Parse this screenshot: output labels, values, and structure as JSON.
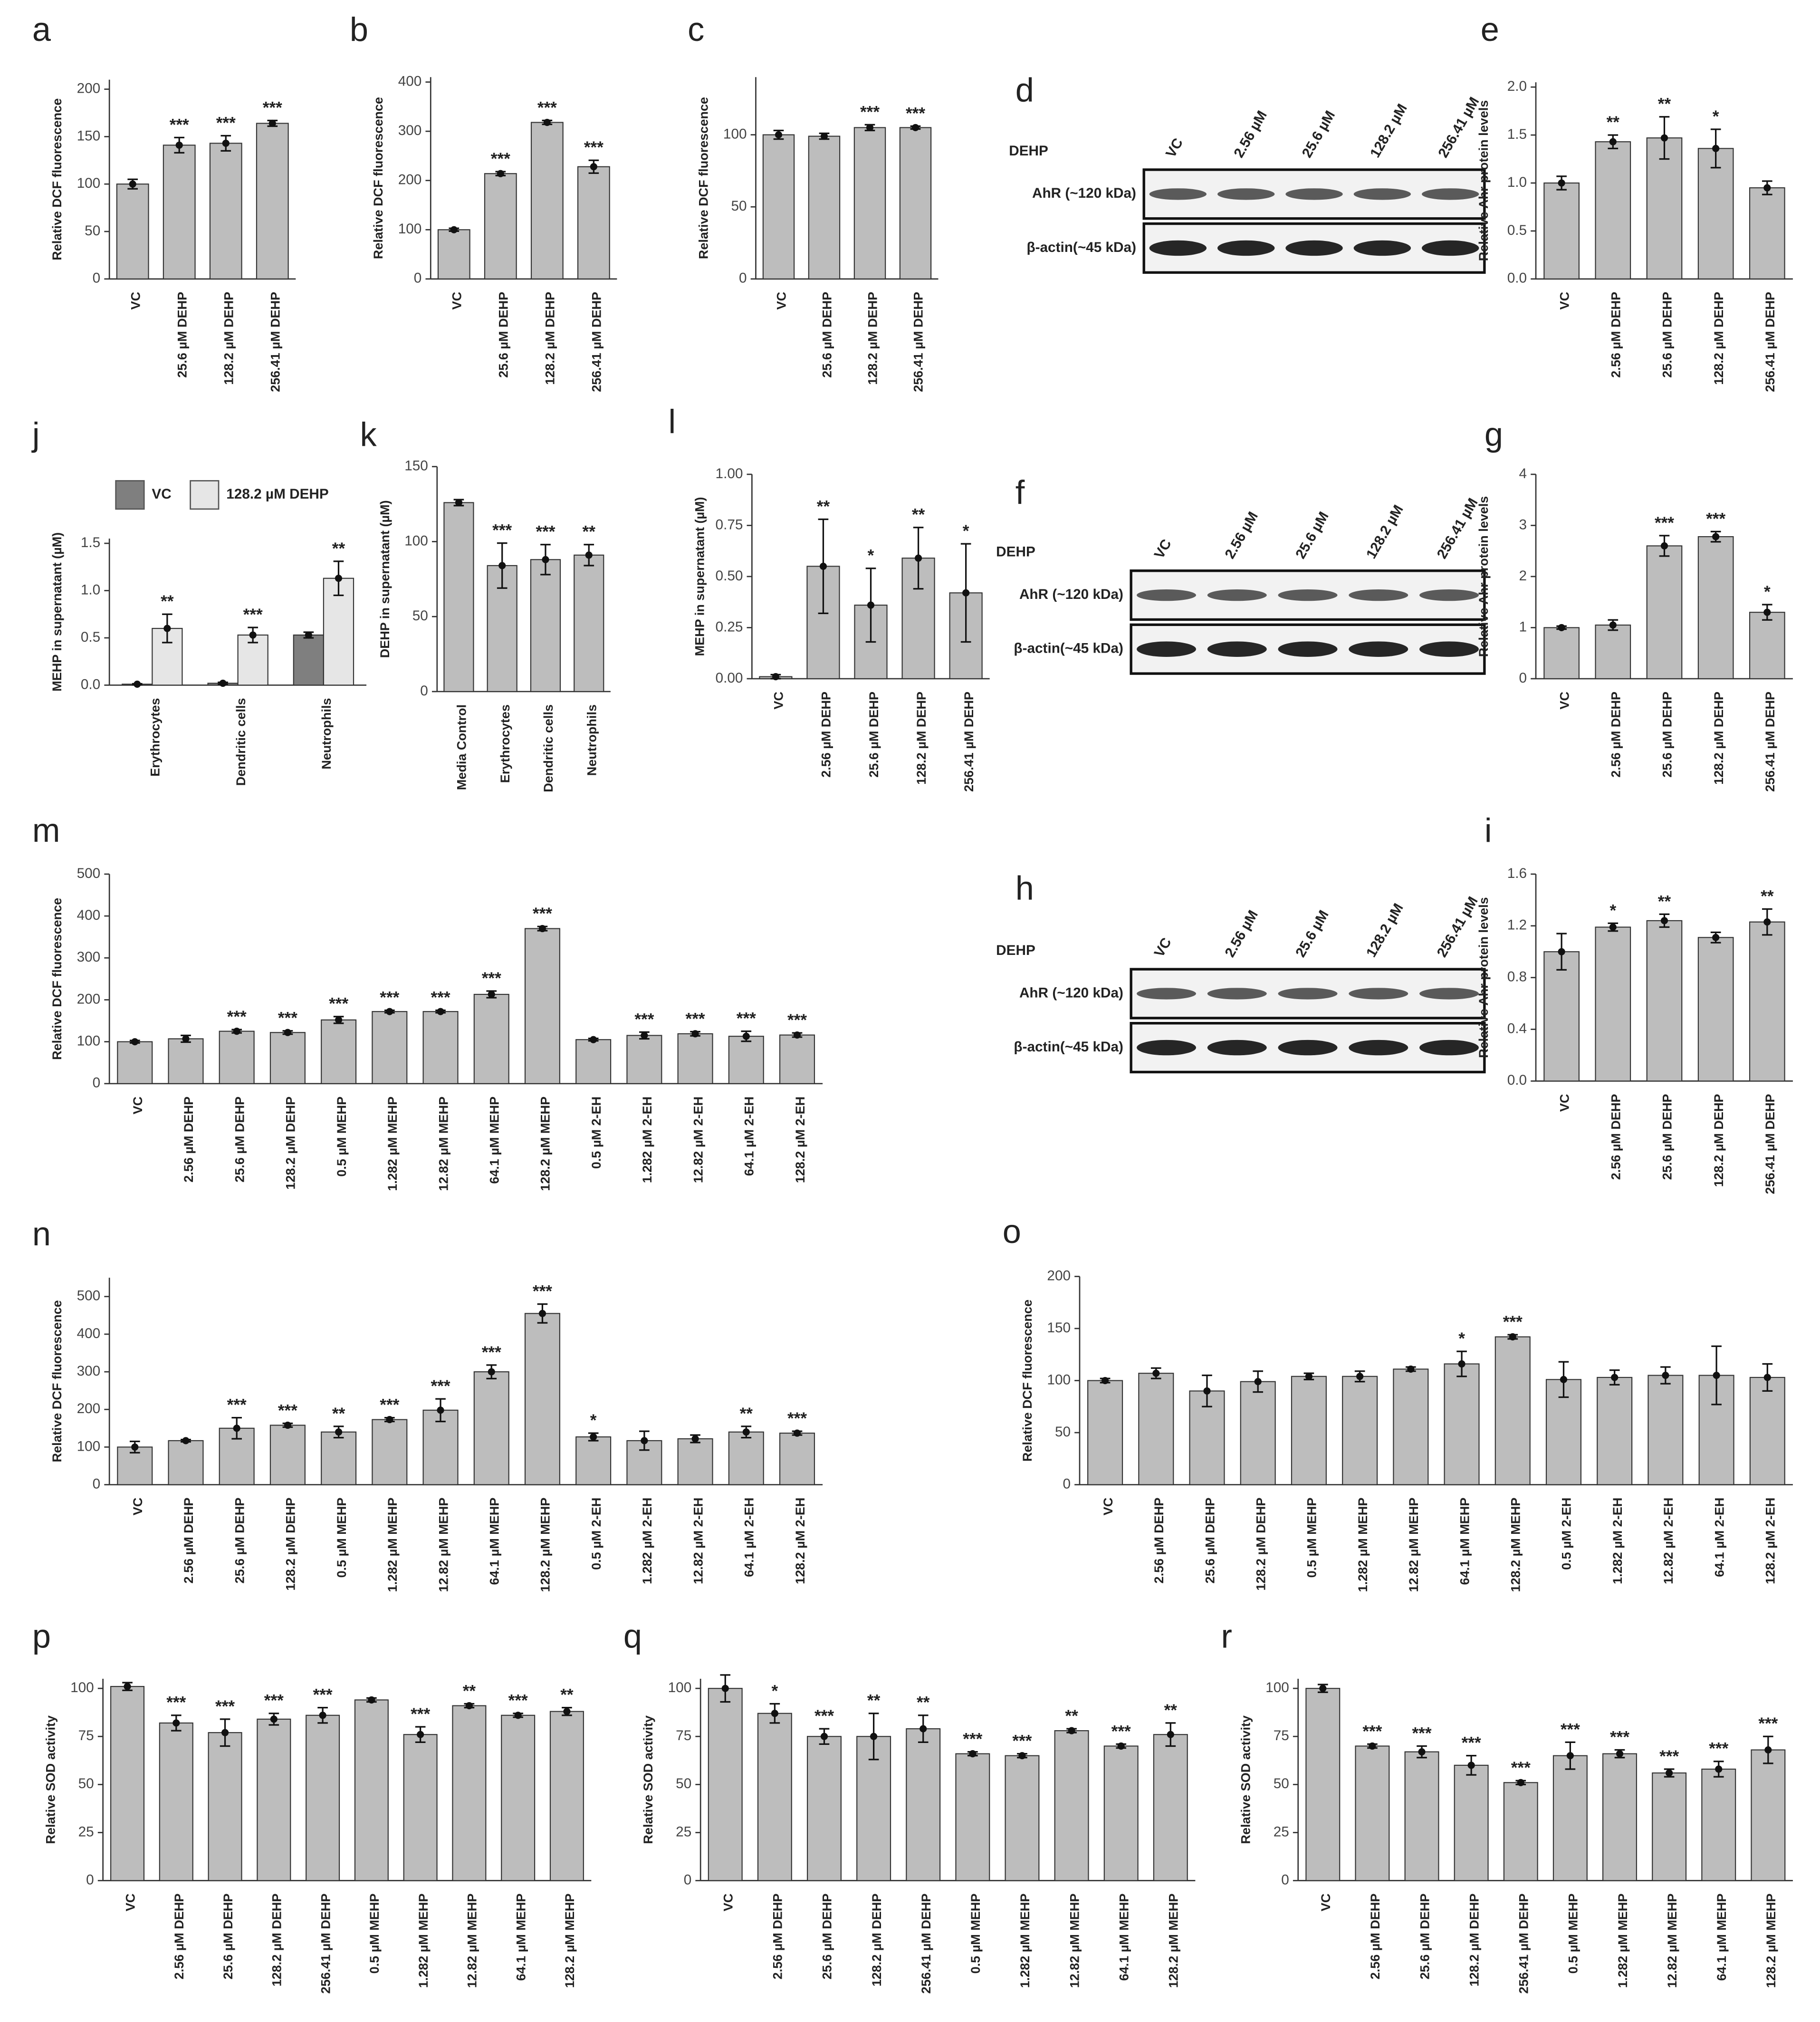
{
  "chart_data": [
    {
      "type": "bar",
      "panel": "a",
      "y_label": "Relative DCF fluorescence",
      "categories": [
        "VC",
        "25.6 µM DEHP",
        "128.2 µM DEHP",
        "256.41 µM DEHP"
      ],
      "values": [
        100,
        141,
        143,
        164
      ],
      "errors": [
        5,
        8,
        8,
        3
      ],
      "annotations": [
        null,
        "***",
        "***",
        "***"
      ],
      "color": "#bdbdbd",
      "ylim": [
        0,
        210
      ],
      "yticks": [
        0,
        50,
        100,
        150,
        200
      ]
    },
    {
      "type": "bar",
      "panel": "b",
      "y_label": "Relative DCF fluorescence",
      "categories": [
        "VC",
        "25.6 µM DEHP",
        "128.2 µM DEHP",
        "256.41 µM DEHP"
      ],
      "values": [
        100,
        214,
        318,
        228
      ],
      "errors": [
        3,
        4,
        4,
        13
      ],
      "annotations": [
        null,
        "***",
        "***",
        "***"
      ],
      "color": "#bdbdbd",
      "ylim": [
        0,
        410
      ],
      "yticks": [
        0,
        100,
        200,
        300,
        400
      ]
    },
    {
      "type": "bar",
      "panel": "c",
      "y_label": "Relative DCF fluorescence",
      "categories": [
        "VC",
        "25.6 µM DEHP",
        "128.2 µM DEHP",
        "256.41 µM DEHP"
      ],
      "values": [
        100,
        99,
        105,
        105
      ],
      "errors": [
        3,
        2,
        2,
        1
      ],
      "annotations": [
        null,
        null,
        "***",
        "***"
      ],
      "color": "#bdbdbd",
      "ylim": [
        0,
        140
      ],
      "yticks": [
        0,
        50,
        100
      ]
    },
    {
      "type": "blot",
      "panel": "d",
      "title": "DEHP",
      "lanes": [
        "VC",
        "2.56 µM",
        "25.6 µM",
        "128.2 µM",
        "256.41 µM"
      ],
      "rows": [
        "AhR (~120 kDa)",
        "β-actin(~45 kDa)"
      ]
    },
    {
      "type": "bar",
      "panel": "e",
      "y_label": "Relative Ahr protein levels",
      "categories": [
        "VC",
        "2.56 µM DEHP",
        "25.6 µM DEHP",
        "128.2 µM DEHP",
        "256.41 µM DEHP"
      ],
      "values": [
        1.0,
        1.43,
        1.47,
        1.36,
        0.95
      ],
      "errors": [
        0.07,
        0.07,
        0.22,
        0.2,
        0.07
      ],
      "annotations": [
        null,
        "**",
        "**",
        "*",
        null
      ],
      "color": "#bdbdbd",
      "ylim": [
        0,
        2.05
      ],
      "yticks": [
        {
          "value": 0,
          "label": "0.0"
        },
        0.5,
        {
          "value": 1,
          "label": "1.0"
        },
        1.5,
        {
          "value": 2,
          "label": "2.0"
        }
      ]
    },
    {
      "type": "grouped_bar",
      "panel": "j",
      "y_label": "MEHP in supernatant (µM)",
      "categories": [
        "Erythrocytes",
        "Dendritic cells",
        "Neutrophils"
      ],
      "series": [
        {
          "name": "VC",
          "color": "#7f7f7f",
          "values": [
            0.01,
            0.02,
            0.53
          ],
          "errors": [
            0.005,
            0.01,
            0.03
          ]
        },
        {
          "name": "128.2 µM DEHP",
          "color": "#e6e6e6",
          "values": [
            0.6,
            0.53,
            1.13
          ],
          "errors": [
            0.15,
            0.08,
            0.18
          ]
        }
      ],
      "annotations": [
        "**",
        "***",
        "**"
      ],
      "legend": "top",
      "ylim": [
        0,
        1.55
      ],
      "yticks": [
        {
          "value": 0,
          "label": "0.0"
        },
        0.5,
        {
          "value": 1,
          "label": "1.0"
        },
        1.5
      ]
    },
    {
      "type": "bar",
      "panel": "k",
      "y_label": "DEHP in supernatant (µM)",
      "categories": [
        "Media Control",
        "Erythrocytes",
        "Dendritic cells",
        "Neutrophils"
      ],
      "values": [
        126,
        84,
        88,
        91
      ],
      "errors": [
        2,
        15,
        10,
        7
      ],
      "annotations": [
        null,
        "***",
        "***",
        "**"
      ],
      "color": "#bdbdbd",
      "ylim": [
        0,
        150
      ],
      "yticks": [
        0,
        50,
        100,
        150
      ]
    },
    {
      "type": "bar",
      "panel": "l",
      "y_label": "MEHP in supernatant (µM)",
      "categories": [
        "VC",
        "2.56 µM DEHP",
        "25.6 µM DEHP",
        "128.2 µM DEHP",
        "256.41 µM DEHP"
      ],
      "values": [
        0.01,
        0.55,
        0.36,
        0.59,
        0.42
      ],
      "errors": [
        0.01,
        0.23,
        0.18,
        0.15,
        0.24
      ],
      "annotations": [
        null,
        "**",
        "*",
        "**",
        "*"
      ],
      "color": "#bdbdbd",
      "ylim": [
        0,
        1.0
      ],
      "yticks": [
        {
          "value": 0,
          "label": "0.00"
        },
        0.25,
        {
          "value": 0.5,
          "label": "0.50"
        },
        0.75,
        {
          "value": 1,
          "label": "1.00"
        }
      ]
    },
    {
      "type": "blot",
      "panel": "f",
      "title": "DEHP",
      "lanes": [
        "VC",
        "2.56 µM",
        "25.6 µM",
        "128.2 µM",
        "256.41 µM"
      ],
      "rows": [
        "AhR (~120 kDa)",
        "β-actin(~45 kDa)"
      ]
    },
    {
      "type": "bar",
      "panel": "g",
      "y_label": "Relative Ahr protein levels",
      "categories": [
        "VC",
        "2.56 µM DEHP",
        "25.6 µM DEHP",
        "128.2 µM DEHP",
        "256.41 µM DEHP"
      ],
      "values": [
        1.0,
        1.05,
        2.6,
        2.78,
        1.3
      ],
      "errors": [
        0.03,
        0.1,
        0.2,
        0.1,
        0.15
      ],
      "annotations": [
        null,
        null,
        "***",
        "***",
        "*"
      ],
      "color": "#bdbdbd",
      "ylim": [
        0,
        4
      ],
      "yticks": [
        0,
        1,
        2,
        3,
        4
      ]
    },
    {
      "type": "bar",
      "panel": "m",
      "y_label": "Relative DCF fluorescence",
      "categories": [
        "VC",
        "2.56 µM DEHP",
        "25.6 µM DEHP",
        "128.2 µM DEHP",
        "0.5 µM MEHP",
        "1.282 µM MEHP",
        "12.82 µM MEHP",
        "64.1 µM MEHP",
        "128.2 µM MEHP",
        "0.5 µM 2-EH",
        "1.282 µM 2-EH",
        "12.82 µM 2-EH",
        "64.1 µM 2-EH",
        "128.2 µM 2-EH"
      ],
      "values": [
        100,
        107,
        125,
        122,
        152,
        172,
        172,
        213,
        370,
        105,
        115,
        119,
        113,
        116
      ],
      "errors": [
        3,
        8,
        4,
        4,
        8,
        3,
        3,
        8,
        5,
        3,
        8,
        5,
        12,
        5
      ],
      "annotations": [
        null,
        null,
        "***",
        "***",
        "***",
        "***",
        "***",
        "***",
        "***",
        null,
        "***",
        "***",
        "***",
        "***"
      ],
      "color": "#bdbdbd",
      "ylim": [
        0,
        500
      ],
      "yticks": [
        0,
        100,
        200,
        300,
        400,
        500
      ]
    },
    {
      "type": "blot",
      "panel": "h",
      "title": "DEHP",
      "lanes": [
        "VC",
        "2.56 µM",
        "25.6 µM",
        "128.2 µM",
        "256.41 µM"
      ],
      "rows": [
        "AhR (~120 kDa)",
        "β-actin(~45 kDa)"
      ]
    },
    {
      "type": "bar",
      "panel": "i",
      "y_label": "Relative Ahr protein levels",
      "categories": [
        "VC",
        "2.56 µM DEHP",
        "25.6 µM DEHP",
        "128.2 µM DEHP",
        "256.41 µM DEHP"
      ],
      "values": [
        1.0,
        1.19,
        1.24,
        1.11,
        1.23
      ],
      "errors": [
        0.14,
        0.03,
        0.05,
        0.04,
        0.1
      ],
      "annotations": [
        null,
        "*",
        "**",
        null,
        "**"
      ],
      "color": "#bdbdbd",
      "ylim": [
        0,
        1.6
      ],
      "yticks": [
        {
          "value": 0,
          "label": "0.0"
        },
        0.4,
        0.8,
        1.2,
        1.6
      ]
    },
    {
      "type": "bar",
      "panel": "n",
      "y_label": "Relative DCF fluorescence",
      "categories": [
        "VC",
        "2.56 µM DEHP",
        "25.6 µM DEHP",
        "128.2 µM DEHP",
        "0.5 µM MEHP",
        "1.282 µM MEHP",
        "12.82 µM MEHP",
        "64.1 µM MEHP",
        "128.2 µM MEHP",
        "0.5 µM 2-EH",
        "1.282 µM 2-EH",
        "12.82 µM 2-EH",
        "64.1 µM 2-EH",
        "128.2 µM 2-EH"
      ],
      "values": [
        100,
        117,
        150,
        158,
        140,
        173,
        198,
        300,
        455,
        127,
        117,
        122,
        140,
        137
      ],
      "errors": [
        15,
        3,
        28,
        5,
        15,
        5,
        30,
        18,
        25,
        10,
        25,
        10,
        15,
        5
      ],
      "annotations": [
        null,
        null,
        "***",
        "***",
        "**",
        "***",
        "***",
        "***",
        "***",
        "*",
        null,
        null,
        "**",
        "***"
      ],
      "color": "#bdbdbd",
      "ylim": [
        0,
        550
      ],
      "yticks": [
        0,
        100,
        200,
        300,
        400,
        500
      ]
    },
    {
      "type": "bar",
      "panel": "o",
      "y_label": "Relative DCF fluorescence",
      "categories": [
        "VC",
        "2.56 µM DEHP",
        "25.6 µM DEHP",
        "128.2 µM DEHP",
        "0.5 µM MEHP",
        "1.282 µM MEHP",
        "12.82 µM MEHP",
        "64.1 µM MEHP",
        "128.2 µM MEHP",
        "0.5 µM 2-EH",
        "1.282 µM 2-EH",
        "12.82 µM 2-EH",
        "64.1 µM 2-EH",
        "128.2 µM 2-EH"
      ],
      "values": [
        100,
        107,
        90,
        99,
        104,
        104,
        111,
        116,
        142,
        101,
        103,
        105,
        105,
        103
      ],
      "errors": [
        2,
        5,
        15,
        10,
        3,
        5,
        2,
        12,
        2,
        17,
        7,
        8,
        28,
        13
      ],
      "annotations": [
        null,
        null,
        null,
        null,
        null,
        null,
        null,
        "*",
        "***",
        null,
        null,
        null,
        null,
        null
      ],
      "color": "#bdbdbd",
      "ylim": [
        0,
        200
      ],
      "yticks": [
        0,
        50,
        100,
        150,
        200
      ]
    },
    {
      "type": "bar",
      "panel": "p",
      "y_label": "Relative SOD activity",
      "categories": [
        "VC",
        "2.56 µM DEHP",
        "25.6 µM DEHP",
        "128.2 µM DEHP",
        "256.41 µM DEHP",
        "0.5 µM MEHP",
        "1.282 µM MEHP",
        "12.82 µM MEHP",
        "64.1 µM MEHP",
        "128.2 µM MEHP"
      ],
      "values": [
        101,
        82,
        77,
        84,
        86,
        94,
        76,
        91,
        86,
        88
      ],
      "errors": [
        2,
        4,
        7,
        3,
        4,
        1,
        4,
        1,
        1,
        2
      ],
      "annotations": [
        null,
        "***",
        "***",
        "***",
        "***",
        null,
        "***",
        "**",
        "***",
        "**"
      ],
      "color": "#bdbdbd",
      "ylim": [
        0,
        105
      ],
      "yticks": [
        0,
        25,
        50,
        75,
        100
      ]
    },
    {
      "type": "bar",
      "panel": "q",
      "y_label": "Relative SOD activity",
      "categories": [
        "VC",
        "2.56 µM DEHP",
        "25.6 µM DEHP",
        "128.2 µM DEHP",
        "256.41 µM DEHP",
        "0.5 µM MEHP",
        "1.282 µM MEHP",
        "12.82 µM MEHP",
        "64.1 µM MEHP",
        "128.2 µM MEHP"
      ],
      "values": [
        100,
        87,
        75,
        75,
        79,
        66,
        65,
        78,
        70,
        76
      ],
      "errors": [
        7,
        5,
        4,
        12,
        7,
        1,
        1,
        1,
        1,
        6
      ],
      "annotations": [
        null,
        "*",
        "***",
        "**",
        "**",
        "***",
        "***",
        "**",
        "***",
        "**"
      ],
      "color": "#bdbdbd",
      "ylim": [
        0,
        105
      ],
      "yticks": [
        0,
        25,
        50,
        75,
        100
      ]
    },
    {
      "type": "bar",
      "panel": "r",
      "y_label": "Relative SOD activity",
      "categories": [
        "VC",
        "2.56 µM DEHP",
        "25.6 µM DEHP",
        "128.2 µM DEHP",
        "256.41 µM DEHP",
        "0.5 µM MEHP",
        "1.282 µM MEHP",
        "12.82 µM MEHP",
        "64.1 µM MEHP",
        "128.2 µM MEHP"
      ],
      "values": [
        100,
        70,
        67,
        60,
        51,
        65,
        66,
        56,
        58,
        68
      ],
      "errors": [
        2,
        1,
        3,
        5,
        1,
        7,
        2,
        2,
        4,
        7
      ],
      "annotations": [
        null,
        "***",
        "***",
        "***",
        "***",
        "***",
        "***",
        "***",
        "***",
        "***"
      ],
      "color": "#bdbdbd",
      "ylim": [
        0,
        105
      ],
      "yticks": [
        0,
        25,
        50,
        75,
        100
      ]
    }
  ]
}
